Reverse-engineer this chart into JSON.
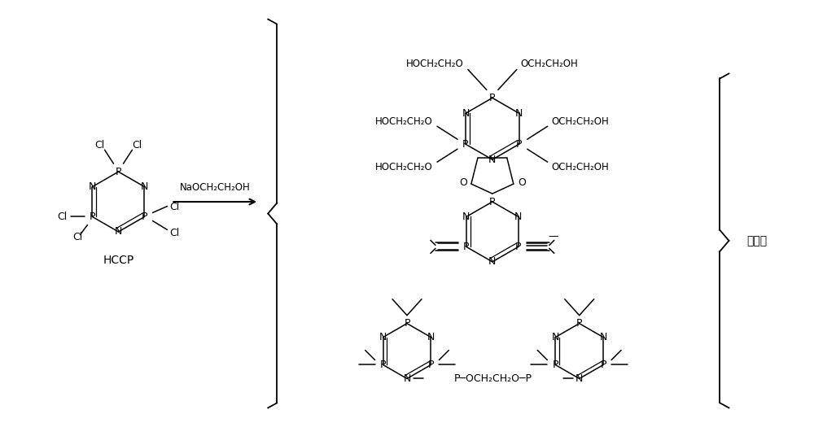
{
  "bg_color": "#ffffff",
  "fig_width": 10.0,
  "fig_height": 5.2,
  "dpi": 100,
  "hccp_label": "HCCP",
  "reagent_label": "NaOCH₂CH₂OH",
  "byproduct_label": "副产物",
  "sub_R": "OCH₂CH₂OH",
  "sub_L": "HOCH₂CH₂O",
  "link": "OCH₂CH₂O",
  "font_size": 9
}
